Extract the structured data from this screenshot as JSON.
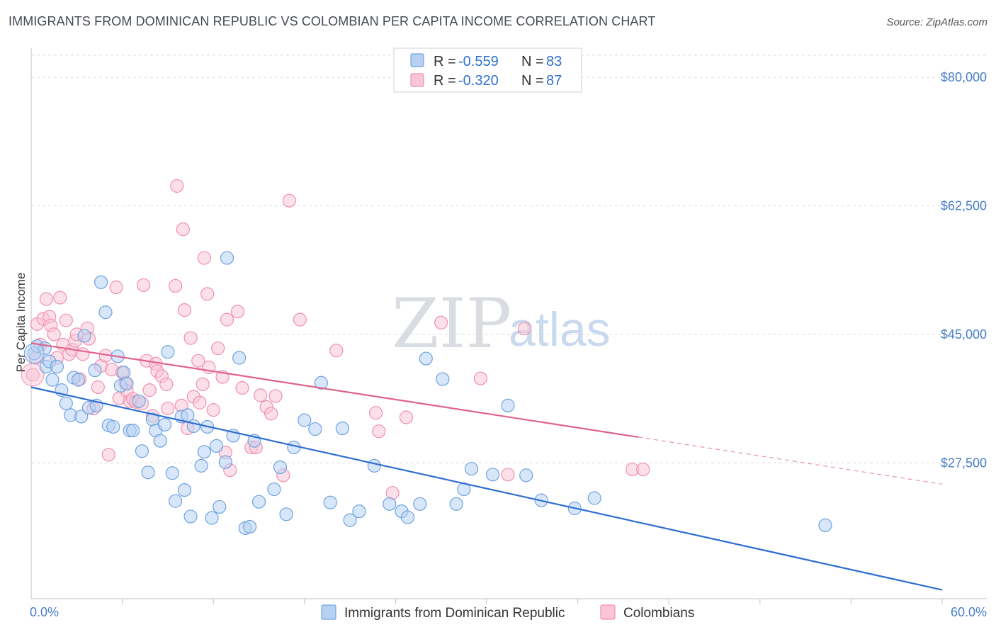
{
  "title": "IMMIGRANTS FROM DOMINICAN REPUBLIC VS COLOMBIAN PER CAPITA INCOME CORRELATION CHART",
  "source": "Source: ZipAtlas.com",
  "watermark": {
    "zip": "ZIP",
    "atlas": "atlas"
  },
  "colors": {
    "blue": "#6fa3e0",
    "blue_fill": "#b7d1f2",
    "blue_line": "#2f6fd0",
    "pink": "#f08fb0",
    "pink_fill": "#f9c6d7",
    "pink_line": "#e0628d",
    "tick_text": "#4a7fc9",
    "grid": "#dcdcdc"
  },
  "legend": {
    "r_label": "R =",
    "n_label": "N =",
    "rows": [
      {
        "r": "-0.559",
        "n": "83"
      },
      {
        "r": "-0.320",
        "n": "87"
      }
    ]
  },
  "bottom_legend": [
    "Immigrants from Dominican Republic",
    "Colombians"
  ],
  "chart_data": {
    "type": "scatter",
    "title": "IMMIGRANTS FROM DOMINICAN REPUBLIC VS COLOMBIAN PER CAPITA INCOME CORRELATION CHART",
    "xlabel": "",
    "ylabel": "Per Capita Income",
    "xlim": [
      0,
      60
    ],
    "ylim": [
      9000,
      83000
    ],
    "x_tick_labels": [
      "0.0%",
      "60.0%"
    ],
    "y_ticks": [
      27500,
      45000,
      62500,
      80000
    ],
    "y_tick_labels": [
      "$27,500",
      "$45,000",
      "$62,500",
      "$80,000"
    ],
    "grid": true,
    "legend_position": "top-center",
    "series": [
      {
        "name": "Immigrants from Dominican Republic",
        "r": -0.559,
        "n": 83,
        "trend": {
          "x": [
            0,
            60
          ],
          "y": [
            37800,
            10200
          ]
        },
        "points": [
          [
            0.2,
            42400
          ],
          [
            0.4,
            43400
          ],
          [
            0.9,
            43100
          ],
          [
            1.0,
            40600
          ],
          [
            1.2,
            41300
          ],
          [
            1.4,
            38800
          ],
          [
            1.7,
            40600
          ],
          [
            2.0,
            37400
          ],
          [
            2.3,
            35600
          ],
          [
            2.6,
            34000
          ],
          [
            2.8,
            39100
          ],
          [
            3.1,
            38800
          ],
          [
            3.3,
            33800
          ],
          [
            3.5,
            44800
          ],
          [
            3.8,
            35000
          ],
          [
            4.2,
            40100
          ],
          [
            4.3,
            35300
          ],
          [
            4.6,
            52100
          ],
          [
            4.9,
            48000
          ],
          [
            5.1,
            32600
          ],
          [
            5.4,
            32400
          ],
          [
            5.7,
            42000
          ],
          [
            5.9,
            38000
          ],
          [
            6.1,
            39800
          ],
          [
            6.3,
            38300
          ],
          [
            6.5,
            31900
          ],
          [
            6.7,
            31900
          ],
          [
            7.1,
            35900
          ],
          [
            7.3,
            29100
          ],
          [
            7.7,
            26200
          ],
          [
            8.0,
            33400
          ],
          [
            8.2,
            31900
          ],
          [
            8.5,
            30500
          ],
          [
            8.8,
            32700
          ],
          [
            9.0,
            42600
          ],
          [
            9.3,
            26100
          ],
          [
            9.5,
            22300
          ],
          [
            9.9,
            33800
          ],
          [
            10.1,
            23800
          ],
          [
            10.3,
            34000
          ],
          [
            10.5,
            20200
          ],
          [
            10.7,
            32500
          ],
          [
            11.2,
            27100
          ],
          [
            11.4,
            29000
          ],
          [
            11.6,
            32400
          ],
          [
            11.9,
            20000
          ],
          [
            12.2,
            29800
          ],
          [
            12.4,
            21500
          ],
          [
            12.8,
            27600
          ],
          [
            12.9,
            55400
          ],
          [
            13.3,
            31200
          ],
          [
            13.7,
            41800
          ],
          [
            14.1,
            18600
          ],
          [
            14.4,
            18800
          ],
          [
            14.7,
            30500
          ],
          [
            15.0,
            22200
          ],
          [
            16.0,
            23900
          ],
          [
            16.4,
            26900
          ],
          [
            16.8,
            20500
          ],
          [
            17.3,
            29600
          ],
          [
            18.0,
            33300
          ],
          [
            18.7,
            32100
          ],
          [
            19.1,
            38400
          ],
          [
            19.7,
            22100
          ],
          [
            20.5,
            32200
          ],
          [
            21.0,
            19700
          ],
          [
            21.6,
            20900
          ],
          [
            22.6,
            27100
          ],
          [
            23.6,
            21900
          ],
          [
            24.4,
            20900
          ],
          [
            24.8,
            20100
          ],
          [
            25.6,
            21900
          ],
          [
            26.0,
            41700
          ],
          [
            27.1,
            38900
          ],
          [
            28.0,
            21900
          ],
          [
            28.5,
            23900
          ],
          [
            29.0,
            26700
          ],
          [
            30.4,
            25900
          ],
          [
            31.4,
            35300
          ],
          [
            32.6,
            25800
          ],
          [
            33.6,
            22400
          ],
          [
            35.8,
            21300
          ],
          [
            37.1,
            22700
          ],
          [
            52.3,
            19000
          ]
        ]
      },
      {
        "name": "Colombians",
        "r": -0.32,
        "n": 87,
        "trend": {
          "x": [
            0,
            40
          ],
          "y": [
            43800,
            31000
          ]
        },
        "trend_dashed": {
          "x": [
            40,
            60
          ],
          "y": [
            31000,
            24600
          ]
        },
        "points": [
          [
            0.1,
            39500
          ],
          [
            0.3,
            41800
          ],
          [
            0.4,
            46400
          ],
          [
            0.6,
            43600
          ],
          [
            0.8,
            47100
          ],
          [
            1.0,
            49800
          ],
          [
            1.2,
            47400
          ],
          [
            1.3,
            46200
          ],
          [
            1.5,
            45000
          ],
          [
            1.7,
            41800
          ],
          [
            1.9,
            50000
          ],
          [
            2.1,
            43600
          ],
          [
            2.3,
            46900
          ],
          [
            2.5,
            42300
          ],
          [
            2.7,
            42900
          ],
          [
            2.9,
            44100
          ],
          [
            3.0,
            45000
          ],
          [
            3.2,
            38900
          ],
          [
            3.4,
            42300
          ],
          [
            3.7,
            45800
          ],
          [
            3.8,
            44400
          ],
          [
            4.1,
            34900
          ],
          [
            4.4,
            37800
          ],
          [
            4.6,
            40700
          ],
          [
            4.9,
            42100
          ],
          [
            5.1,
            28600
          ],
          [
            5.3,
            40200
          ],
          [
            5.6,
            51400
          ],
          [
            5.8,
            36300
          ],
          [
            6.0,
            39800
          ],
          [
            6.2,
            38400
          ],
          [
            6.3,
            37300
          ],
          [
            6.5,
            35900
          ],
          [
            6.7,
            36200
          ],
          [
            6.9,
            35800
          ],
          [
            7.3,
            35600
          ],
          [
            7.4,
            51700
          ],
          [
            7.6,
            41400
          ],
          [
            7.8,
            37400
          ],
          [
            8.0,
            33900
          ],
          [
            8.2,
            41000
          ],
          [
            8.3,
            40000
          ],
          [
            8.6,
            39300
          ],
          [
            8.9,
            38200
          ],
          [
            9.0,
            34900
          ],
          [
            9.5,
            51600
          ],
          [
            9.6,
            65200
          ],
          [
            9.9,
            35300
          ],
          [
            10.0,
            59300
          ],
          [
            10.1,
            48300
          ],
          [
            10.3,
            32200
          ],
          [
            10.5,
            44500
          ],
          [
            10.7,
            36500
          ],
          [
            11.0,
            41400
          ],
          [
            11.1,
            35700
          ],
          [
            11.3,
            38200
          ],
          [
            11.4,
            55400
          ],
          [
            11.6,
            50500
          ],
          [
            11.7,
            40500
          ],
          [
            12.0,
            34700
          ],
          [
            12.3,
            43100
          ],
          [
            12.6,
            39200
          ],
          [
            12.8,
            28900
          ],
          [
            12.9,
            47000
          ],
          [
            13.1,
            26500
          ],
          [
            13.6,
            48100
          ],
          [
            13.9,
            37700
          ],
          [
            14.5,
            29600
          ],
          [
            14.8,
            29600
          ],
          [
            15.1,
            36700
          ],
          [
            15.5,
            35100
          ],
          [
            15.8,
            34200
          ],
          [
            16.1,
            36600
          ],
          [
            16.6,
            25800
          ],
          [
            17.0,
            63200
          ],
          [
            17.7,
            47000
          ],
          [
            20.1,
            42800
          ],
          [
            22.7,
            34300
          ],
          [
            22.9,
            31800
          ],
          [
            23.8,
            23400
          ],
          [
            24.7,
            33700
          ],
          [
            27.0,
            46600
          ],
          [
            29.6,
            39000
          ],
          [
            31.4,
            25900
          ],
          [
            32.5,
            45800
          ],
          [
            39.6,
            26600
          ],
          [
            40.3,
            26600
          ]
        ]
      }
    ]
  }
}
